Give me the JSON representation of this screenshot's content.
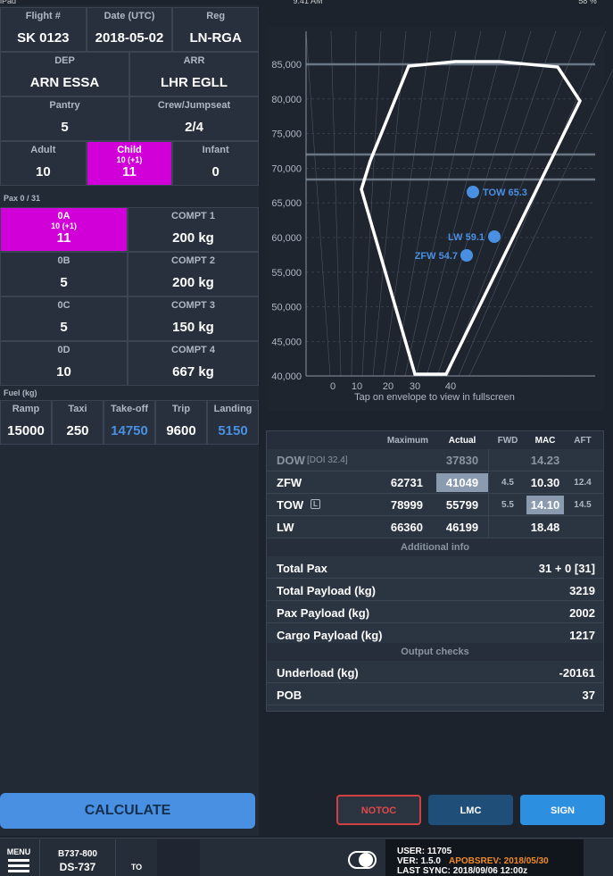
{
  "status_bar": {
    "device": "iPad",
    "time": "9:41 AM",
    "battery": "58 %"
  },
  "flight": [
    {
      "label": "Flight #",
      "value": "SK 0123"
    },
    {
      "label": "Date (UTC)",
      "value": "2018-05-02"
    },
    {
      "label": "Reg",
      "value": "LN-RGA"
    }
  ],
  "route": [
    {
      "label": "DEP",
      "value": "ARN ESSA"
    },
    {
      "label": "ARR",
      "value": "LHR EGLL"
    }
  ],
  "service": [
    {
      "label": "Pantry",
      "value": "5"
    },
    {
      "label": "Crew/Jumpseat",
      "value": "2/4"
    }
  ],
  "pax_types": [
    {
      "label": "Adult",
      "value": "10"
    },
    {
      "label": "Child",
      "sub": "10 (+1)",
      "value": "11"
    },
    {
      "label": "Infant",
      "value": "0"
    }
  ],
  "pax_header": "Pax 0 / 31",
  "zones": [
    {
      "label": "0A",
      "sub": "10 (+1)",
      "value": "11"
    },
    {
      "label": "0B",
      "value": "5"
    },
    {
      "label": "0C",
      "value": "5"
    },
    {
      "label": "0D",
      "value": "10"
    }
  ],
  "compartments": [
    {
      "label": "COMPT 1",
      "value": "200 kg"
    },
    {
      "label": "COMPT 2",
      "value": "200 kg"
    },
    {
      "label": "COMPT 3",
      "value": "150 kg"
    },
    {
      "label": "COMPT 4",
      "value": "667 kg"
    }
  ],
  "fuel": {
    "title": "Fuel (kg)",
    "cells": [
      {
        "label": "Ramp",
        "value": "15000"
      },
      {
        "label": "Taxi",
        "value": "250"
      },
      {
        "label": "Take-off",
        "value": "14750"
      },
      {
        "label": "Trip",
        "value": "9600"
      },
      {
        "label": "Landing",
        "value": "5150"
      }
    ]
  },
  "calculate": "CALCULATE",
  "envelope": {
    "yticks": [
      "85,000",
      "80,000",
      "75,000",
      "70,000",
      "65,000",
      "60,000",
      "55,000",
      "50,000",
      "45,000",
      "40,000"
    ],
    "xticks": [
      "0",
      "10",
      "20",
      "30",
      "40"
    ],
    "hint": "Tap on envelope to view in fullscreen",
    "points": [
      {
        "label": "TOW 65.3"
      },
      {
        "label": "LW 59.1"
      },
      {
        "label": "ZFW 54.7"
      }
    ]
  },
  "table": {
    "headers": [
      "Maximum",
      "Actual",
      "FWD",
      "MAC",
      "AFT"
    ],
    "rows": [
      {
        "name": "DOW",
        "note": "[DOI 32.4]",
        "actual": "37830",
        "mac": "14.23"
      },
      {
        "name": "ZFW",
        "maximum": "62731",
        "actual": "41049",
        "fwd": "4.5",
        "mac": "10.30",
        "aft": "12.4"
      },
      {
        "name": "TOW",
        "badge": "L",
        "maximum": "78999",
        "actual": "55799",
        "fwd": "5.5",
        "mac": "14.10",
        "aft": "14.5"
      },
      {
        "name": "LW",
        "maximum": "66360",
        "actual": "46199",
        "mac": "18.48"
      }
    ],
    "additional_title": "Additional info",
    "additional": [
      {
        "label": "Total Pax",
        "value": "31 + 0 [31]"
      },
      {
        "label": "Total Payload (kg)",
        "value": "3219"
      },
      {
        "label": "Pax Payload (kg)",
        "value": "2002"
      },
      {
        "label": "Cargo Payload (kg)",
        "value": "1217"
      }
    ],
    "checks_title": "Output checks",
    "checks": [
      {
        "label": "Underload (kg)",
        "value": "-20161"
      },
      {
        "label": "POB",
        "value": "37"
      }
    ]
  },
  "buttons": [
    "NOTOC",
    "LMC",
    "SIGN"
  ],
  "bottom_bar": {
    "menu": "MENU",
    "aircraft": "B737-800",
    "config": "DS-737",
    "mode": "TO",
    "user": "USER: 11705",
    "version": "VER: 1.5.0",
    "apobsrev": "APOBSREV: 2018/05/30",
    "sync": "LAST SYNC: 2018/09/06 12:00z"
  }
}
